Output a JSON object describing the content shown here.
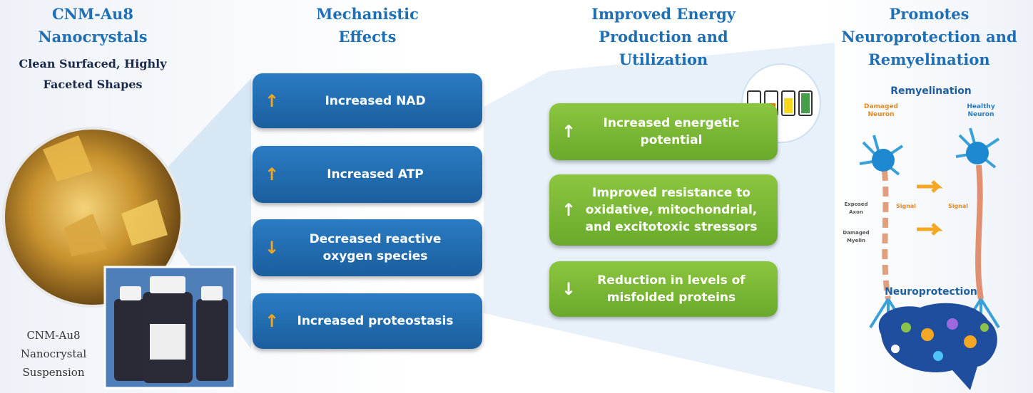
{
  "columns": [
    {
      "title": "CNM-Au8 Nanocrystals",
      "subtitle": "Clean Surfaced, Highly Faceted Shapes",
      "caption": "CNM-Au8 Nanocrystal Suspension"
    },
    {
      "title": "Mechanistic Effects",
      "items": [
        {
          "arrow": "up",
          "text": "Increased NAD"
        },
        {
          "arrow": "up",
          "text": "Increased ATP"
        },
        {
          "arrow": "down",
          "text": "Decreased reactive oxygen species"
        },
        {
          "arrow": "up",
          "text": "Increased proteostasis"
        }
      ]
    },
    {
      "title": "Improved Energy Production and Utilization",
      "items": [
        {
          "arrow": "up",
          "text": "Increased energetic potential"
        },
        {
          "arrow": "up",
          "text": "Improved resistance to oxidative, mitochondrial, and excitotoxic stressors"
        },
        {
          "arrow": "down",
          "text": "Reduction in levels of misfolded proteins"
        }
      ]
    },
    {
      "title": "Promotes Neuroprotection and Remyelination",
      "remyelination": "Remyelination",
      "damaged": "Damaged Neuron",
      "healthy": "Healthy Neuron",
      "exposed_axon": "Exposed Axon",
      "damaged_myelin": "Damaged Myelin",
      "signal_left": "Signal",
      "signal_right": "Signal",
      "neuroprotection": "Neuroprotection"
    }
  ]
}
